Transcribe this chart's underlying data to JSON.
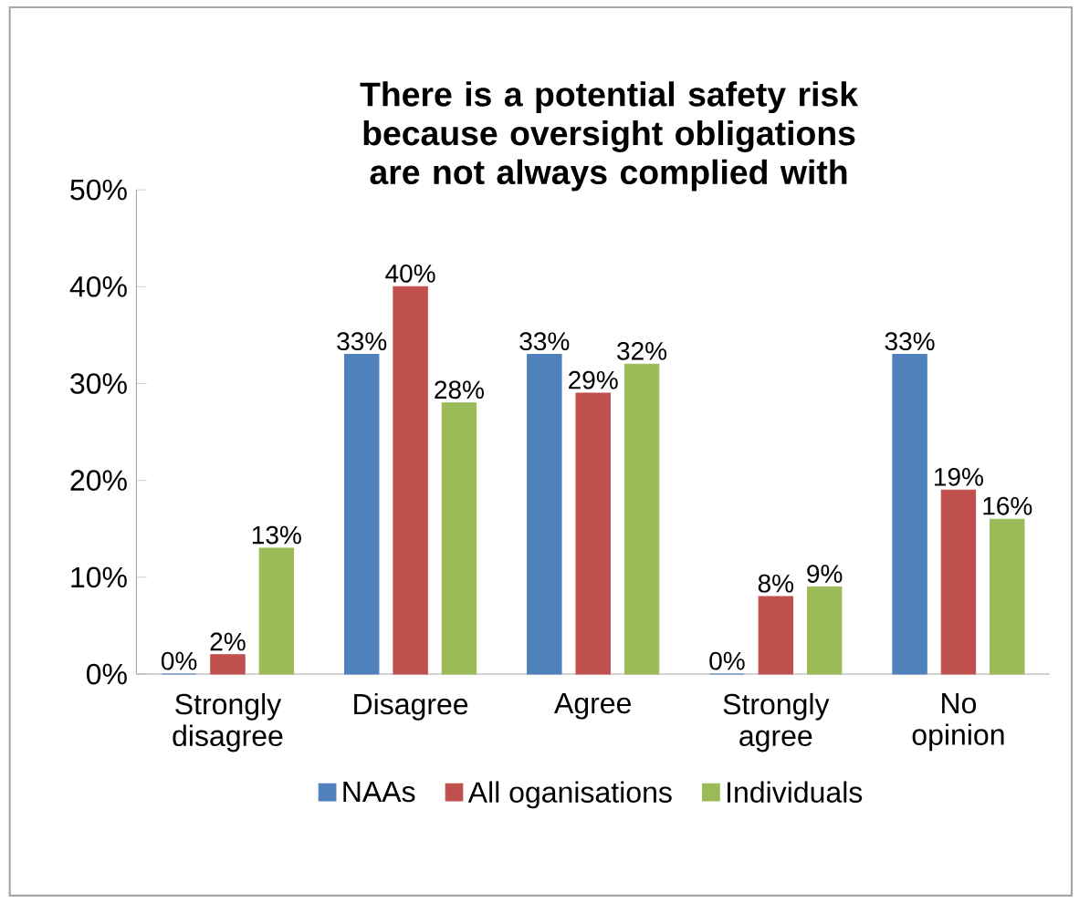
{
  "chart_data": {
    "type": "bar",
    "title": "There is a potential safety risk because oversight obligations are not always complied with",
    "categories": [
      "Strongly disagree",
      "Disagree",
      "Agree",
      "Strongly agree",
      "No opinion"
    ],
    "series": [
      {
        "name": "NAAs",
        "color": "#4f81bd",
        "values": [
          0,
          33,
          33,
          0,
          33
        ],
        "value_labels": [
          "0%",
          "33%",
          "33%",
          "0%",
          "33%"
        ]
      },
      {
        "name": "All oganisations",
        "color": "#c0504d",
        "values": [
          2,
          40,
          29,
          8,
          19
        ],
        "value_labels": [
          "2%",
          "40%",
          "29%",
          "8%",
          "19%"
        ]
      },
      {
        "name": "Individuals",
        "color": "#9bbb59",
        "values": [
          13,
          28,
          32,
          9,
          16
        ],
        "value_labels": [
          "13%",
          "28%",
          "32%",
          "9%",
          "16%"
        ]
      }
    ],
    "ylim": [
      0,
      50
    ],
    "yticks": [
      {
        "value": 0,
        "label": "0%"
      },
      {
        "value": 10,
        "label": "10%"
      },
      {
        "value": 20,
        "label": "20%"
      },
      {
        "value": 30,
        "label": "30%"
      },
      {
        "value": 40,
        "label": "40%"
      },
      {
        "value": 50,
        "label": "50%"
      }
    ],
    "grid": false,
    "legend": "bottom"
  }
}
